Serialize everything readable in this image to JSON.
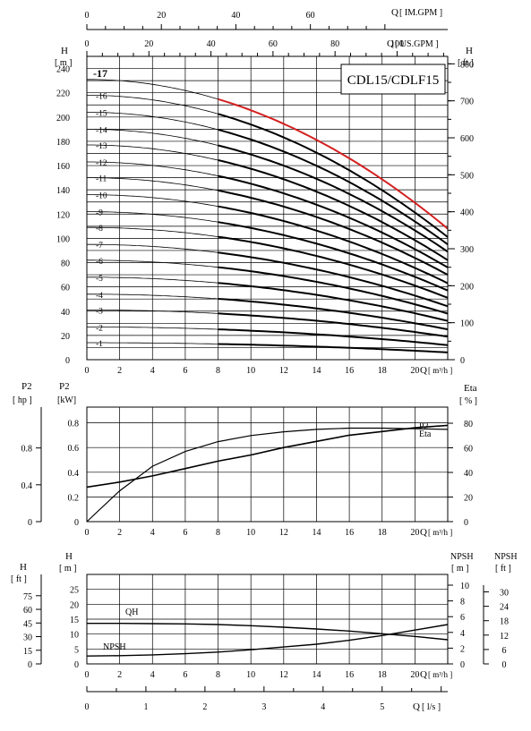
{
  "title": "CDL15/CDLF15",
  "colors": {
    "highlight": "#d42020",
    "ink": "#000000",
    "grid": "#000000"
  },
  "flow_axes": {
    "q_label": "Q",
    "imgpm": {
      "unit": "[ IM.GPM ]",
      "ticks": [
        0,
        20,
        40,
        60
      ]
    },
    "usgpm": {
      "unit": "[ US.GPM ]",
      "ticks": [
        0,
        20,
        40,
        60,
        80,
        100
      ]
    },
    "m3h_unit": "[ m³/h ]",
    "ls": {
      "unit": "[ l/s ]",
      "ticks": [
        0,
        1,
        2,
        3,
        4,
        5
      ]
    }
  },
  "panel_labels": {
    "head_m": [
      "H",
      "[ m ]"
    ],
    "head_ft": [
      "H",
      "[ ft ]"
    ],
    "p2_hp": [
      "P2",
      "[ hp ]"
    ],
    "p2_kw": [
      "P2",
      "[kW]"
    ],
    "eta": [
      "Eta",
      "[ % ]"
    ],
    "npsh_h_ft": [
      "H",
      "[ ft ]"
    ],
    "npsh_h_m": [
      "H",
      "[ m ]"
    ],
    "npsh_m": [
      "NPSH",
      "[ m ]"
    ],
    "npsh_ft": [
      "NPSH",
      "[ ft ]"
    ]
  },
  "chart_data": [
    {
      "type": "line",
      "name": "head",
      "x_unit": "m³/h",
      "xlim": [
        0,
        22
      ],
      "x_ticks": [
        0,
        2,
        4,
        6,
        8,
        10,
        12,
        14,
        16,
        18,
        20
      ],
      "ylim": [
        0,
        250
      ],
      "y_ticks": [
        0,
        20,
        40,
        60,
        80,
        100,
        120,
        140,
        160,
        180,
        200,
        220,
        240
      ],
      "y2_ticks_ft": [
        0,
        100,
        200,
        300,
        400,
        500,
        600,
        700,
        800
      ],
      "thin_range": [
        0,
        8
      ],
      "thick_range": [
        8,
        22
      ],
      "highlight_stage": "-17",
      "series": [
        {
          "name": "-1",
          "shutoff": 14,
          "end": 6
        },
        {
          "name": "-2",
          "shutoff": 27,
          "end": 12
        },
        {
          "name": "-3",
          "shutoff": 41,
          "end": 19
        },
        {
          "name": "-4",
          "shutoff": 54,
          "end": 25
        },
        {
          "name": "-5",
          "shutoff": 68,
          "end": 32
        },
        {
          "name": "-6",
          "shutoff": 82,
          "end": 38
        },
        {
          "name": "-7",
          "shutoff": 95,
          "end": 44
        },
        {
          "name": "-8",
          "shutoff": 109,
          "end": 51
        },
        {
          "name": "-9",
          "shutoff": 122,
          "end": 57
        },
        {
          "name": "-10",
          "shutoff": 136,
          "end": 63
        },
        {
          "name": "-11",
          "shutoff": 150,
          "end": 70
        },
        {
          "name": "-12",
          "shutoff": 163,
          "end": 76
        },
        {
          "name": "-13",
          "shutoff": 177,
          "end": 82
        },
        {
          "name": "-14",
          "shutoff": 190,
          "end": 89
        },
        {
          "name": "-15",
          "shutoff": 204,
          "end": 95
        },
        {
          "name": "-16",
          "shutoff": 218,
          "end": 101
        },
        {
          "name": "-17",
          "shutoff": 231,
          "end": 108
        }
      ]
    },
    {
      "type": "line",
      "name": "power-efficiency",
      "x_unit": "m³/h",
      "xlim": [
        0,
        22
      ],
      "x_ticks": [
        0,
        2,
        4,
        6,
        8,
        10,
        12,
        14,
        16,
        18,
        20
      ],
      "ylim": [
        0,
        0.9
      ],
      "y_ticks": [
        0,
        0.2,
        0.4,
        0.6,
        0.8
      ],
      "y_hp_ticks": [
        0,
        0.4,
        0.8
      ],
      "y_eta_ticks": [
        0,
        20,
        40,
        60,
        80
      ],
      "series": [
        {
          "name": "P2",
          "x": [
            0,
            2,
            4,
            6,
            8,
            10,
            12,
            14,
            16,
            18,
            20,
            22
          ],
          "y": [
            0.28,
            0.32,
            0.37,
            0.43,
            0.49,
            0.54,
            0.6,
            0.65,
            0.7,
            0.73,
            0.76,
            0.78
          ]
        },
        {
          "name": "Eta",
          "x": [
            0,
            2,
            4,
            6,
            8,
            10,
            12,
            14,
            16,
            18,
            20,
            22
          ],
          "y": [
            0,
            25,
            45,
            57,
            65,
            70,
            73,
            75,
            76,
            76,
            75.5,
            75
          ]
        }
      ]
    },
    {
      "type": "line",
      "name": "npsh",
      "x_unit": "m³/h",
      "xlim": [
        0,
        22
      ],
      "x_ticks": [
        0,
        2,
        4,
        6,
        8,
        10,
        12,
        14,
        16,
        18,
        20
      ],
      "ylim": [
        0,
        30
      ],
      "y_ticks": [
        0,
        5,
        10,
        15,
        20,
        25
      ],
      "y_ft_ticks": [
        0,
        15,
        30,
        45,
        60,
        75
      ],
      "y_npsh_m_ticks": [
        0,
        2,
        4,
        6,
        8,
        10
      ],
      "y_npsh_ft_ticks": [
        0,
        6,
        12,
        18,
        24,
        30
      ],
      "series": [
        {
          "name": "QH",
          "x": [
            0,
            2,
            4,
            6,
            8,
            10,
            12,
            14,
            16,
            18,
            20,
            22
          ],
          "y": [
            13.6,
            13.6,
            13.5,
            13.4,
            13.2,
            12.8,
            12.3,
            11.7,
            11,
            10.1,
            9.2,
            8.1
          ]
        },
        {
          "name": "NPSH",
          "x": [
            0,
            2,
            4,
            6,
            8,
            10,
            12,
            14,
            16,
            18,
            20,
            22
          ],
          "y": [
            1.0,
            1.05,
            1.15,
            1.3,
            1.5,
            1.8,
            2.15,
            2.5,
            3.0,
            3.6,
            4.3,
            5.0
          ]
        }
      ]
    }
  ]
}
